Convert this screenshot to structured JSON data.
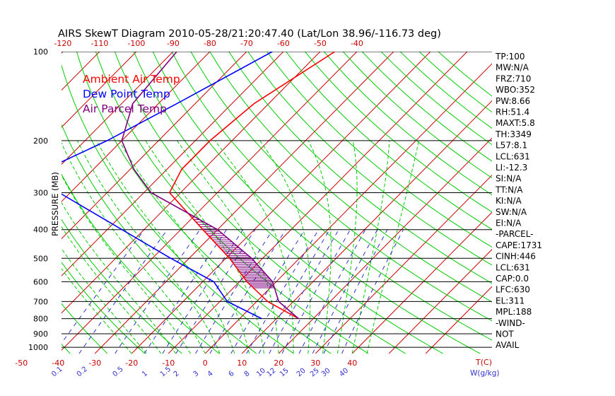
{
  "title": "AIRS SkewT Diagram 2010-05-28/21:20:47.40 (Lat/Lon 38.96/-116.73 deg)",
  "chart_data": {
    "type": "skew-t",
    "title": "AIRS SkewT Diagram 2010-05-28/21:20:47.40 (Lat/Lon 38.96/-116.73 deg)",
    "ylabel": "PRESSURE (MB)",
    "xlabel": "T(C)",
    "mixing_ratio_unit": "W(g/kg)",
    "pressure_labels": [
      "100",
      "200",
      "300",
      "400",
      "500",
      "600",
      "700",
      "800",
      "900",
      "1000"
    ],
    "pressure_levels": [
      100,
      200,
      300,
      400,
      500,
      600,
      700,
      800,
      900,
      1000
    ],
    "top_temp_labels": [
      "-120",
      "-110",
      "-100",
      "-90",
      "-80",
      "-70",
      "-60",
      "-50",
      "-40"
    ],
    "top_temps": [
      -120,
      -110,
      -100,
      -90,
      -80,
      -70,
      -60,
      -50,
      -40
    ],
    "bottom_temp_labels": [
      "-50",
      "-40",
      "-30",
      "-20",
      "-10",
      "0",
      "10",
      "20",
      "30",
      "40"
    ],
    "bottom_temps": [
      -50,
      -40,
      -30,
      -20,
      -10,
      0,
      10,
      20,
      30,
      40
    ],
    "mixing_ratio_labels": [
      "0.1",
      "0.2",
      "0.5",
      "1",
      "1.5",
      "2",
      "3",
      "4",
      "6",
      "8",
      "10",
      "12",
      "15",
      "20",
      "25",
      "30",
      "40"
    ],
    "mixing_ratios": [
      0.1,
      0.2,
      0.5,
      1,
      1.5,
      2,
      3,
      4,
      6,
      8,
      10,
      12,
      15,
      20,
      25,
      30,
      40
    ],
    "legend": [
      {
        "label": "Ambient Air Temp",
        "color": "#ff0000"
      },
      {
        "label": "Dew Point Temp",
        "color": "#0000ff"
      },
      {
        "label": "Air Parcel Temp",
        "color": "#800080"
      }
    ],
    "colors": {
      "isotherm": "#cc0000",
      "dry_adiabat": "#00cc00",
      "moist_adiabat": "#00cc00",
      "mixing_ratio": "#3030cc",
      "isobar": "#000000",
      "cape_hatch": "#800080"
    },
    "series": [
      {
        "name": "Ambient Air Temp",
        "points": [
          [
            100,
            -46
          ],
          [
            150,
            -54
          ],
          [
            200,
            -56
          ],
          [
            250,
            -56
          ],
          [
            300,
            -53
          ],
          [
            400,
            -34
          ],
          [
            500,
            -19
          ],
          [
            600,
            -8
          ],
          [
            700,
            3
          ],
          [
            800,
            16
          ]
        ]
      },
      {
        "name": "Dew Point Temp",
        "points": [
          [
            100,
            -63
          ],
          [
            150,
            -75
          ],
          [
            200,
            -84
          ],
          [
            250,
            -93
          ],
          [
            300,
            -83
          ],
          [
            400,
            -56
          ],
          [
            500,
            -35
          ],
          [
            600,
            -17
          ],
          [
            700,
            -8
          ],
          [
            800,
            6
          ]
        ]
      },
      {
        "name": "Air Parcel Temp",
        "points": [
          [
            100,
            -89
          ],
          [
            150,
            -87
          ],
          [
            200,
            -80
          ],
          [
            250,
            -69
          ],
          [
            300,
            -58
          ],
          [
            400,
            -30
          ],
          [
            500,
            -13
          ],
          [
            600,
            -1
          ],
          [
            700,
            6
          ],
          [
            800,
            16
          ]
        ]
      }
    ],
    "cape_shading": {
      "from_mb": 630,
      "to_mb": 300
    }
  },
  "stats": [
    "TP:100",
    "MW:N/A",
    "FRZ:710",
    "WBO:352",
    "PW:8.66",
    "RH:51.4",
    "MAXT:5.8",
    "TH:3349",
    "L57:8.1",
    "LCL:631",
    "LI:-12.3",
    "SI:N/A",
    "TT:N/A",
    "KI:N/A",
    "SW:N/A",
    "EI:N/A",
    "-PARCEL-",
    "CAPE:1731",
    "CINH:446",
    "LCL:631",
    "CAP:0.0",
    "LFC:630",
    "EL:311",
    "MPL:188",
    "-WIND-",
    "NOT",
    "AVAIL"
  ]
}
